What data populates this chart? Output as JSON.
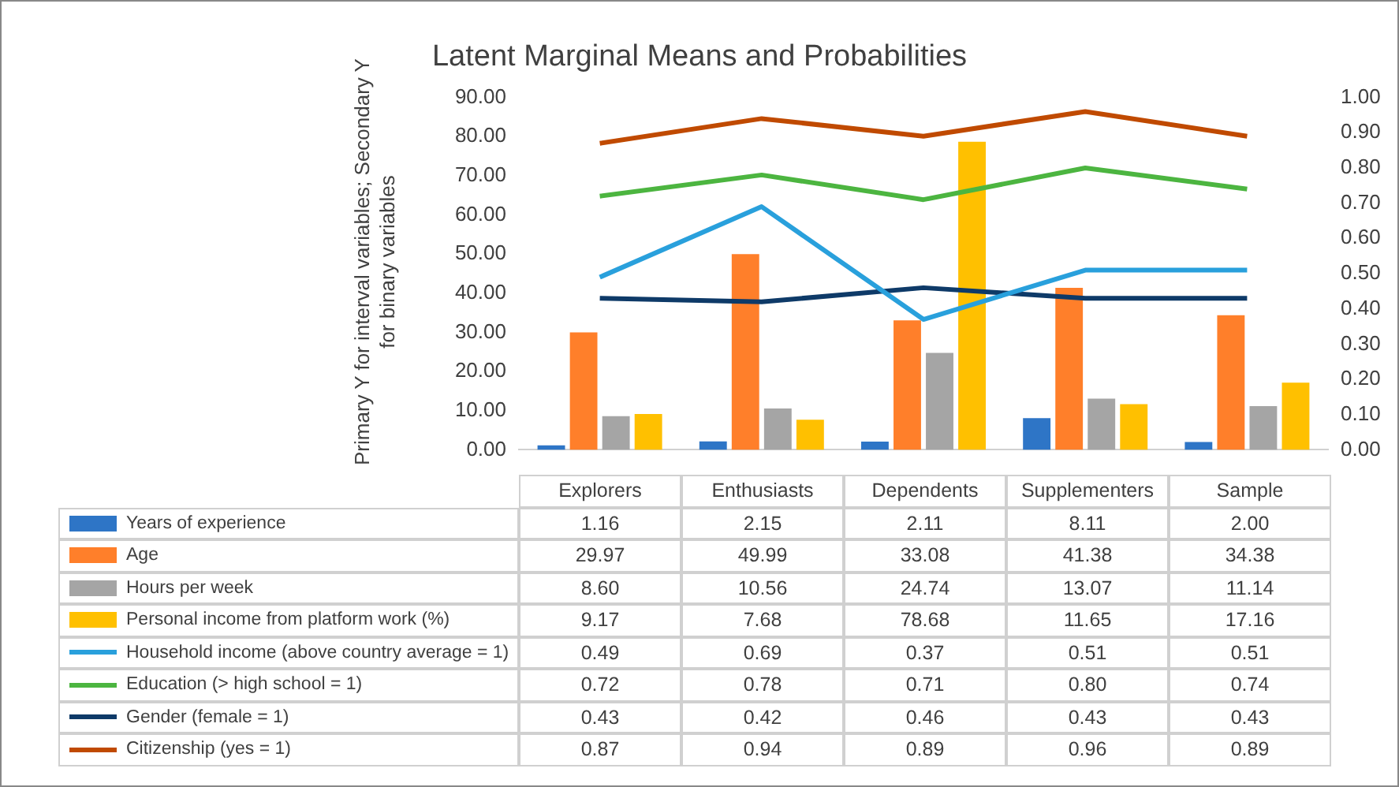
{
  "chart_data": {
    "type": "bar",
    "title": "Latent Marginal Means and Probabilities",
    "ylabel": "Primary Y for interval variables; Secondary Y for binary variables",
    "categories": [
      "Explorers",
      "Enthusiasts",
      "Dependents",
      "Supplementers",
      "Sample"
    ],
    "series": [
      {
        "name": "Years of experience",
        "color": "#2e75c6",
        "values": [
          1.16,
          2.15,
          2.11,
          8.11,
          2.0
        ],
        "value_labels": [
          "1.16",
          "2.15",
          "2.11",
          "8.11",
          "2.00"
        ]
      },
      {
        "name": "Age",
        "color": "#ff7f2a",
        "values": [
          29.97,
          49.99,
          33.08,
          41.38,
          34.38
        ],
        "value_labels": [
          "29.97",
          "49.99",
          "33.08",
          "41.38",
          "34.38"
        ]
      },
      {
        "name": "Hours per week",
        "color": "#a5a5a5",
        "values": [
          8.6,
          10.56,
          24.74,
          13.07,
          11.14
        ],
        "value_labels": [
          "8.60",
          "10.56",
          "24.74",
          "13.07",
          "11.14"
        ]
      },
      {
        "name": "Personal income from platform work (%)",
        "color": "#ffc000",
        "values": [
          9.17,
          7.68,
          78.68,
          11.65,
          17.16
        ],
        "value_labels": [
          "9.17",
          "7.68",
          "78.68",
          "11.65",
          "17.16"
        ]
      },
      {
        "name": "Household income (above country average = 1)",
        "type": "line",
        "axis": "y2",
        "color": "#29a0dc",
        "values": [
          0.49,
          0.69,
          0.37,
          0.51,
          0.51
        ],
        "value_labels": [
          "0.49",
          "0.69",
          "0.37",
          "0.51",
          "0.51"
        ]
      },
      {
        "name": "Education (> high school = 1)",
        "type": "line",
        "axis": "y2",
        "color": "#4cb540",
        "values": [
          0.72,
          0.78,
          0.71,
          0.8,
          0.74
        ],
        "value_labels": [
          "0.72",
          "0.78",
          "0.71",
          "0.80",
          "0.74"
        ]
      },
      {
        "name": "Gender (female = 1)",
        "type": "line",
        "axis": "y2",
        "color": "#0e3a68",
        "values": [
          0.43,
          0.42,
          0.46,
          0.43,
          0.43
        ],
        "value_labels": [
          "0.43",
          "0.42",
          "0.46",
          "0.43",
          "0.43"
        ]
      },
      {
        "name": "Citizenship (yes = 1)",
        "type": "line",
        "axis": "y2",
        "color": "#c04a00",
        "values": [
          0.87,
          0.94,
          0.89,
          0.96,
          0.89
        ],
        "value_labels": [
          "0.87",
          "0.94",
          "0.89",
          "0.96",
          "0.89"
        ]
      }
    ],
    "ylim": [
      0,
      90
    ],
    "yticks": [
      {
        "value": 0,
        "label": "0.00"
      },
      {
        "value": 10,
        "label": "10.00"
      },
      {
        "value": 20,
        "label": "20.00"
      },
      {
        "value": 30,
        "label": "30.00"
      },
      {
        "value": 40,
        "label": "40.00"
      },
      {
        "value": 50,
        "label": "50.00"
      },
      {
        "value": 60,
        "label": "60.00"
      },
      {
        "value": 70,
        "label": "70.00"
      },
      {
        "value": 80,
        "label": "80.00"
      },
      {
        "value": 90,
        "label": "90.00"
      }
    ],
    "y2lim": [
      0,
      1
    ],
    "y2ticks": [
      {
        "value": 0,
        "label": "0.00"
      },
      {
        "value": 0.1,
        "label": "0.10"
      },
      {
        "value": 0.2,
        "label": "0.20"
      },
      {
        "value": 0.3,
        "label": "0.30"
      },
      {
        "value": 0.4,
        "label": "0.40"
      },
      {
        "value": 0.5,
        "label": "0.50"
      },
      {
        "value": 0.6,
        "label": "0.60"
      },
      {
        "value": 0.7,
        "label": "0.70"
      },
      {
        "value": 0.8,
        "label": "0.80"
      },
      {
        "value": 0.9,
        "label": "0.90"
      },
      {
        "value": 1,
        "label": "1.00"
      }
    ],
    "legend": "bottom",
    "marker": "none",
    "line_style": "solid"
  }
}
